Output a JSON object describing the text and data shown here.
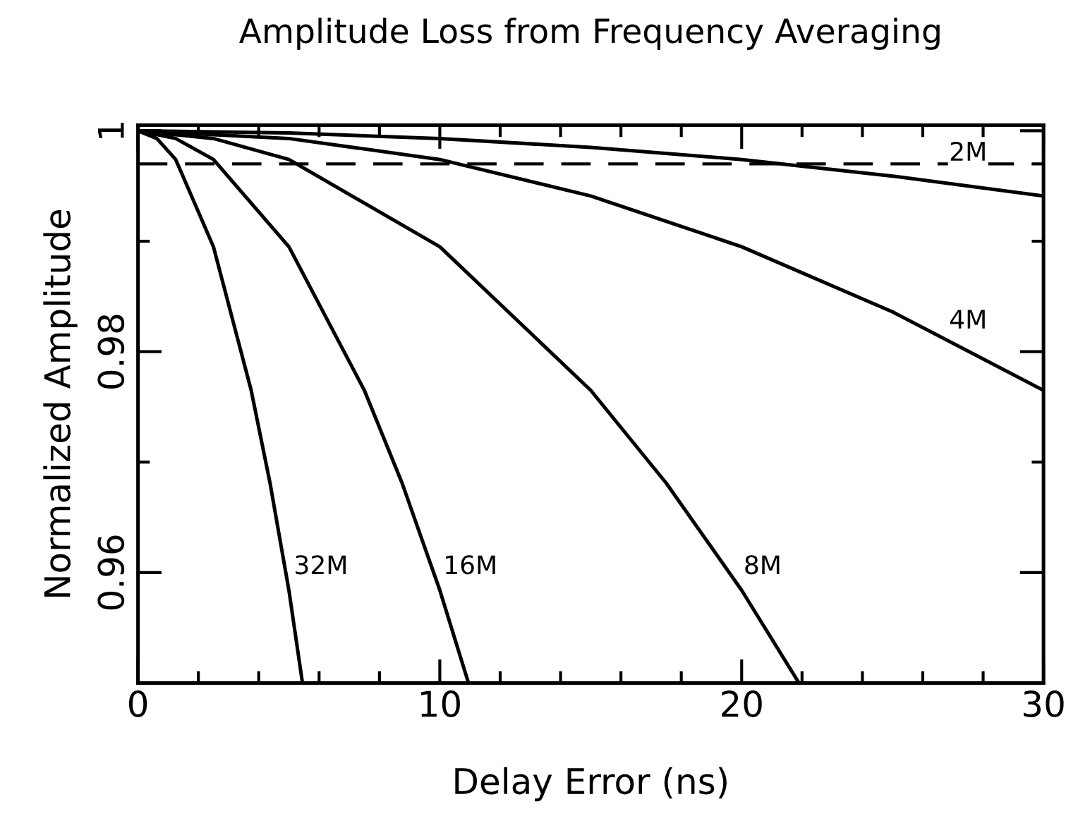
{
  "chart_data": {
    "type": "line",
    "title": "Amplitude Loss from Frequency Averaging",
    "xlabel": "Delay Error (ns)",
    "ylabel": "Normalized Amplitude",
    "series": [
      {
        "color": "#000000",
        "x": [
          0,
          5,
          10,
          15,
          20,
          25,
          30
        ],
        "values": [
          1,
          0.9998,
          0.9993,
          0.9985,
          0.9974,
          0.9959,
          0.9941
        ]
      },
      {
        "color": "#000000",
        "x": [
          0,
          5,
          10,
          15,
          20,
          25,
          30
        ],
        "values": [
          1,
          0.9993,
          0.9974,
          0.9941,
          0.9895,
          0.9836,
          0.9765
        ]
      },
      {
        "color": "#000000",
        "x": [
          0,
          2.5,
          5,
          10,
          15,
          17.5,
          20,
          21.9
        ],
        "values": [
          1,
          0.9993,
          0.9974,
          0.9895,
          0.9765,
          0.9681,
          0.9584,
          0.95
        ]
      },
      {
        "color": "#000000",
        "x": [
          0,
          1.25,
          2.5,
          5,
          7.5,
          8.75,
          10,
          10.95
        ],
        "values": [
          1,
          0.9993,
          0.9974,
          0.9895,
          0.9765,
          0.9681,
          0.9584,
          0.95
        ]
      },
      {
        "color": "#000000",
        "x": [
          0,
          0.625,
          1.25,
          2.5,
          3.75,
          4.375,
          5,
          5.45
        ],
        "values": [
          1,
          0.9993,
          0.9974,
          0.9895,
          0.9765,
          0.9681,
          0.9584,
          0.95
        ]
      }
    ],
    "annotations": [
      {
        "text": "2M",
        "x": 27,
        "y": 0.9951
      },
      {
        "text": "4M",
        "x": 27,
        "y": 0.9799
      },
      {
        "text": "8M",
        "x": 19.8,
        "y": 0.9605
      },
      {
        "text": "16M",
        "x": 9.85,
        "y": 0.9605
      },
      {
        "text": "32M",
        "x": 4.9,
        "y": 0.9605
      }
    ],
    "ref_lines": [
      {
        "axis": "y",
        "value": 0.997,
        "line_style": "dashed",
        "color": "#000000"
      }
    ],
    "xlim": [
      0,
      30
    ],
    "ylim": [
      0.95,
      1.0005
    ],
    "xticks": [
      0,
      {
        "value": 2,
        "label": null
      },
      {
        "value": 4,
        "label": null
      },
      {
        "value": 6,
        "label": null
      },
      {
        "value": 8,
        "label": null
      },
      10,
      {
        "value": 12,
        "label": null
      },
      {
        "value": 14,
        "label": null
      },
      {
        "value": 16,
        "label": null
      },
      {
        "value": 18,
        "label": null
      },
      20,
      {
        "value": 22,
        "label": null
      },
      {
        "value": 24,
        "label": null
      },
      {
        "value": 26,
        "label": null
      },
      {
        "value": 28,
        "label": null
      },
      30
    ],
    "yticks": [
      {
        "value": 0.96,
        "label": "0.96"
      },
      {
        "value": 0.97,
        "label": null
      },
      {
        "value": 0.98,
        "label": "0.98"
      },
      {
        "value": 0.99,
        "label": null
      },
      {
        "value": 1,
        "label": "1"
      }
    ],
    "grid": false,
    "legend": false,
    "marker": "none",
    "line_style": "solid"
  }
}
